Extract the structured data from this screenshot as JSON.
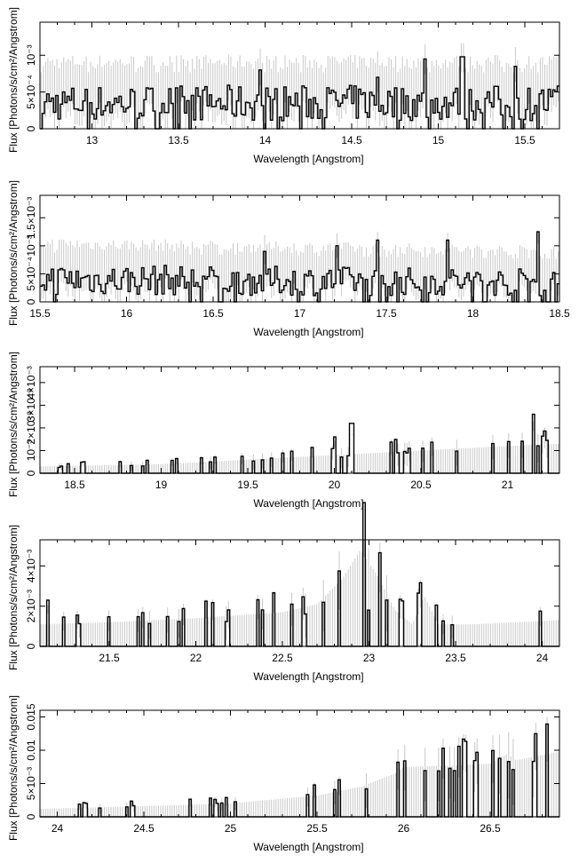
{
  "chart_data": [
    {
      "type": "line",
      "xlabel": "Wavelength [Angstrom]",
      "ylabel": "Flux [Photons/s/cm²/Angstrom]",
      "xlim": [
        12.7,
        15.7
      ],
      "ylim": [
        0,
        0.00145
      ],
      "xticks": [
        {
          "v": 13,
          "label": "13"
        },
        {
          "v": 13.5,
          "label": "13.5"
        },
        {
          "v": 14,
          "label": "14"
        },
        {
          "v": 14.5,
          "label": "14.5"
        },
        {
          "v": 15,
          "label": "15"
        },
        {
          "v": 15.5,
          "label": "15.5"
        }
      ],
      "yticks": [
        {
          "v": 0,
          "label": "0"
        },
        {
          "v": 0.0005,
          "label": "5×10⁻⁴"
        },
        {
          "v": 0.001,
          "label": "10⁻³"
        }
      ],
      "baseline": [
        [
          12.7,
          0.00035
        ],
        [
          15.7,
          0.00035
        ]
      ],
      "spikes": [
        [
          14.92,
          0.00095
        ],
        [
          15.14,
          0.00098
        ],
        [
          13.97,
          0.0008
        ],
        [
          14.65,
          0.0007
        ],
        [
          15.45,
          0.00085
        ]
      ]
    },
    {
      "type": "line",
      "xlabel": "Wavelength [Angstrom]",
      "ylabel": "Flux [Photons/s/cm²/Angstrom]",
      "xlim": [
        15.5,
        18.5
      ],
      "ylim": [
        0,
        0.0019
      ],
      "xticks": [
        {
          "v": 15.5,
          "label": "15.5"
        },
        {
          "v": 16,
          "label": "16"
        },
        {
          "v": 16.5,
          "label": "16.5"
        },
        {
          "v": 17,
          "label": "17"
        },
        {
          "v": 17.5,
          "label": "17.5"
        },
        {
          "v": 18,
          "label": "18"
        },
        {
          "v": 18.5,
          "label": "18.5"
        }
      ],
      "yticks": [
        {
          "v": 0,
          "label": "0"
        },
        {
          "v": 0.0005,
          "label": "5×10⁻⁴"
        },
        {
          "v": 0.001,
          "label": "10⁻³"
        },
        {
          "v": 0.0015,
          "label": "1.5×10⁻³"
        }
      ],
      "baseline": [
        [
          15.5,
          0.0004
        ],
        [
          18.5,
          0.00035
        ]
      ],
      "spikes": [
        [
          17.22,
          0.001
        ],
        [
          17.45,
          0.0011
        ],
        [
          17.85,
          0.0011
        ],
        [
          18.38,
          0.00125
        ],
        [
          16.8,
          0.0009
        ]
      ]
    },
    {
      "type": "line",
      "xlabel": "Wavelength [Angstrom]",
      "ylabel": "Flux [Photons/s/cm²/Angstrom]",
      "xlim": [
        18.3,
        21.3
      ],
      "ylim": [
        0,
        0.0047
      ],
      "xticks": [
        {
          "v": 18.5,
          "label": "18.5"
        },
        {
          "v": 19,
          "label": "19"
        },
        {
          "v": 19.5,
          "label": "19.5"
        },
        {
          "v": 20,
          "label": "20"
        },
        {
          "v": 20.5,
          "label": "20.5"
        },
        {
          "v": 21,
          "label": "21"
        }
      ],
      "yticks": [
        {
          "v": 0,
          "label": "0"
        },
        {
          "v": 0.001,
          "label": "10⁻³"
        },
        {
          "v": 0.002,
          "label": "2×10⁻³"
        },
        {
          "v": 0.003,
          "label": "3×10⁻³"
        },
        {
          "v": 0.004,
          "label": "4×10⁻³"
        }
      ],
      "baseline": [
        [
          18.3,
          0.0003
        ],
        [
          19.0,
          0.0004
        ],
        [
          19.5,
          0.0006
        ],
        [
          20.0,
          0.0008
        ],
        [
          20.5,
          0.001
        ],
        [
          21.0,
          0.0012
        ],
        [
          21.3,
          0.0013
        ]
      ],
      "spikes": [
        [
          20.0,
          0.0016
        ],
        [
          20.1,
          0.0022
        ],
        [
          21.15,
          0.0026
        ]
      ]
    },
    {
      "type": "line",
      "xlabel": "Wavelength [Angstrom]",
      "ylabel": "Flux [Photons/s/cm²/Angstrom]",
      "xlim": [
        21.1,
        24.1
      ],
      "ylim": [
        0,
        0.0053
      ],
      "xticks": [
        {
          "v": 21.5,
          "label": "21.5"
        },
        {
          "v": 22,
          "label": "22"
        },
        {
          "v": 22.5,
          "label": "22.5"
        },
        {
          "v": 23,
          "label": "23"
        },
        {
          "v": 23.5,
          "label": "23.5"
        },
        {
          "v": 24,
          "label": "24"
        }
      ],
      "yticks": [
        {
          "v": 0,
          "label": "0"
        },
        {
          "v": 0.002,
          "label": "2×10⁻³"
        },
        {
          "v": 0.004,
          "label": "4×10⁻³"
        }
      ],
      "baseline": [
        [
          21.1,
          0.0011
        ],
        [
          21.5,
          0.0012
        ],
        [
          22.0,
          0.0014
        ],
        [
          22.5,
          0.0017
        ],
        [
          22.7,
          0.0021
        ],
        [
          22.85,
          0.0034
        ],
        [
          22.95,
          0.0048
        ],
        [
          23.05,
          0.0035
        ],
        [
          23.15,
          0.0018
        ],
        [
          23.25,
          0.0011
        ],
        [
          23.32,
          0.0025
        ],
        [
          23.4,
          0.0011
        ],
        [
          23.6,
          0.0011
        ],
        [
          24.1,
          0.0013
        ]
      ],
      "spikes": [
        [
          21.15,
          0.0023
        ],
        [
          22.55,
          0.0021
        ],
        [
          23.0,
          0.0018
        ]
      ]
    },
    {
      "type": "line",
      "xlabel": "Wavelength [Angstrom]",
      "ylabel": "Flux [Photons/s/cm²/Angstrom]",
      "xlim": [
        23.9,
        26.9
      ],
      "ylim": [
        0,
        0.016
      ],
      "xticks": [
        {
          "v": 24,
          "label": "24"
        },
        {
          "v": 24.5,
          "label": "24.5"
        },
        {
          "v": 25,
          "label": "25"
        },
        {
          "v": 25.5,
          "label": "25.5"
        },
        {
          "v": 26,
          "label": "26"
        },
        {
          "v": 26.5,
          "label": "26.5"
        }
      ],
      "yticks": [
        {
          "v": 0,
          "label": "0"
        },
        {
          "v": 0.005,
          "label": "5×10⁻³"
        },
        {
          "v": 0.01,
          "label": "0.01"
        },
        {
          "v": 0.015,
          "label": "0.015"
        }
      ],
      "baseline": [
        [
          23.9,
          0.0012
        ],
        [
          24.5,
          0.0016
        ],
        [
          25.0,
          0.002
        ],
        [
          25.5,
          0.0032
        ],
        [
          25.75,
          0.0045
        ],
        [
          25.95,
          0.0065
        ],
        [
          26.0,
          0.0075
        ],
        [
          26.3,
          0.0077
        ],
        [
          26.5,
          0.008
        ],
        [
          26.6,
          0.0095
        ],
        [
          26.65,
          0.0085
        ],
        [
          26.9,
          0.0098
        ]
      ],
      "spikes": [
        [
          26.2,
          0.0069
        ],
        [
          26.27,
          0.0073
        ],
        [
          25.78,
          0.0042
        ]
      ]
    }
  ]
}
